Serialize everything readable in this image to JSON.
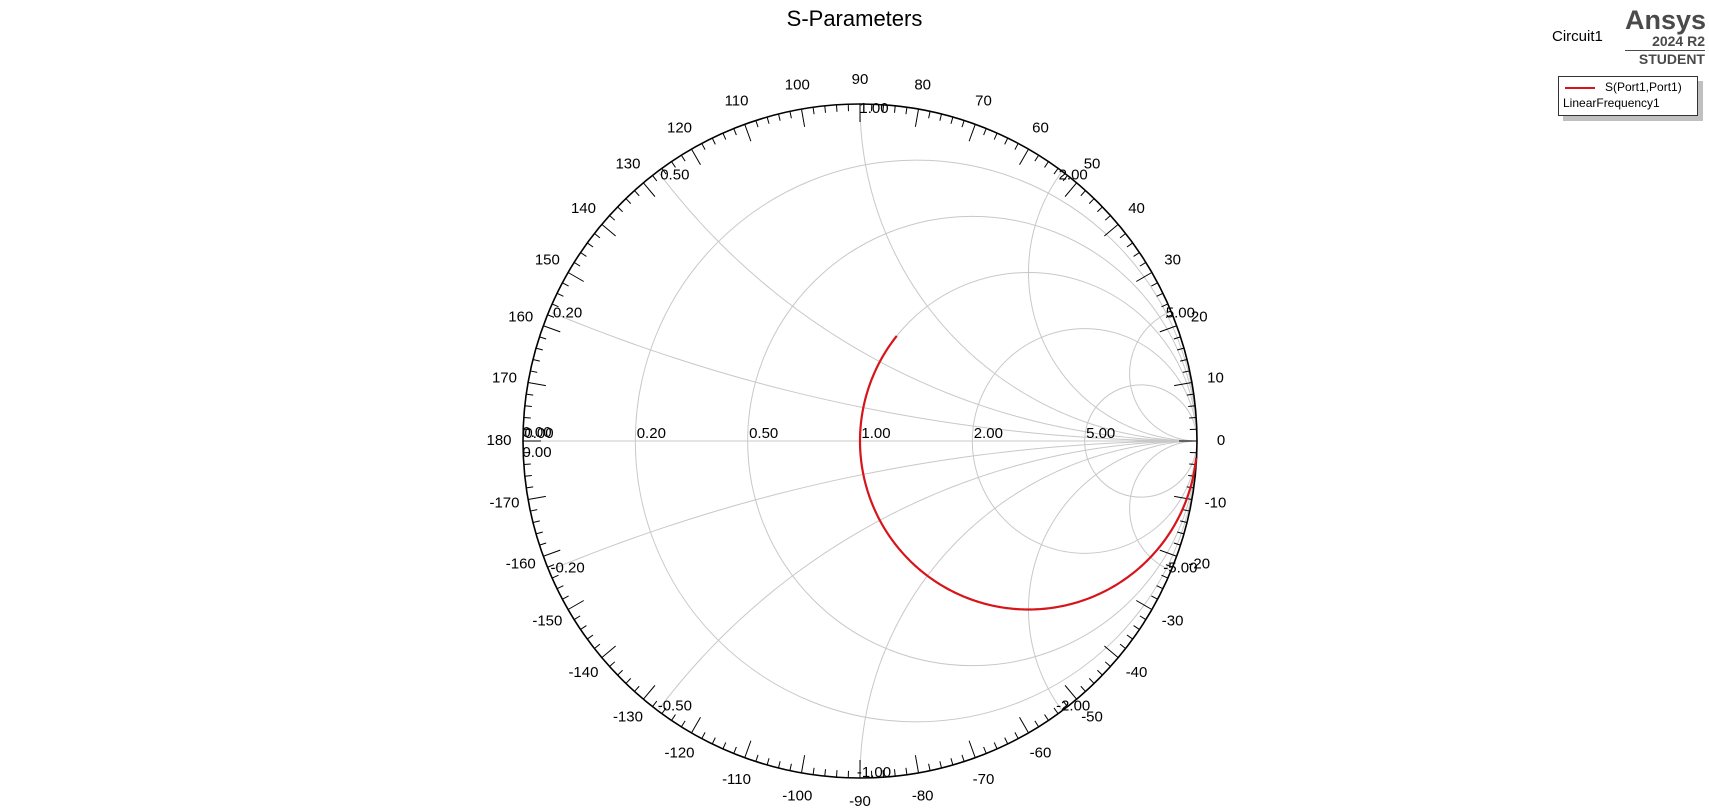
{
  "chart_data": {
    "type": "smith",
    "title": "S-Parameters",
    "design_name": "Circuit1",
    "logo": {
      "brand": "Ansys",
      "version": "2024 R2",
      "edition": "STUDENT"
    },
    "legend": {
      "series_label": "S(Port1,Port1)",
      "setup_label": "LinearFrequency1"
    },
    "resistance_labels": [
      "0.00",
      "0.20",
      "0.50",
      "1.00",
      "2.00",
      "5.00"
    ],
    "reactance_labels": {
      "upper": [
        "0.20",
        "0.50",
        "1.00",
        "2.00",
        "5.00"
      ],
      "lower": [
        "-0.20",
        "-0.50",
        "-1.00",
        "-2.00",
        "-5.00"
      ],
      "left_upper": "0.00",
      "left_lower": "0.00"
    },
    "angle_labels": [
      "0",
      "10",
      "20",
      "30",
      "40",
      "50",
      "60",
      "70",
      "80",
      "90",
      "100",
      "110",
      "120",
      "130",
      "140",
      "150",
      "160",
      "170",
      "180",
      "-170",
      "-160",
      "-150",
      "-140",
      "-130",
      "-120",
      "-110",
      "-100",
      "-90",
      "-80",
      "-70",
      "-60",
      "-50",
      "-40",
      "-30",
      "-20",
      "-10"
    ],
    "grid_resistances": [
      0,
      0.2,
      0.5,
      1,
      2,
      5
    ],
    "grid_reactances": [
      0.2,
      0.5,
      1,
      2,
      5
    ],
    "series": [
      {
        "name": "S(Port1,Port1)",
        "color": "#d7141a",
        "normalized_impedance": {
          "resistance": 1.0,
          "reactance_start": 0.7,
          "reactance_end": -40
        }
      }
    ]
  }
}
